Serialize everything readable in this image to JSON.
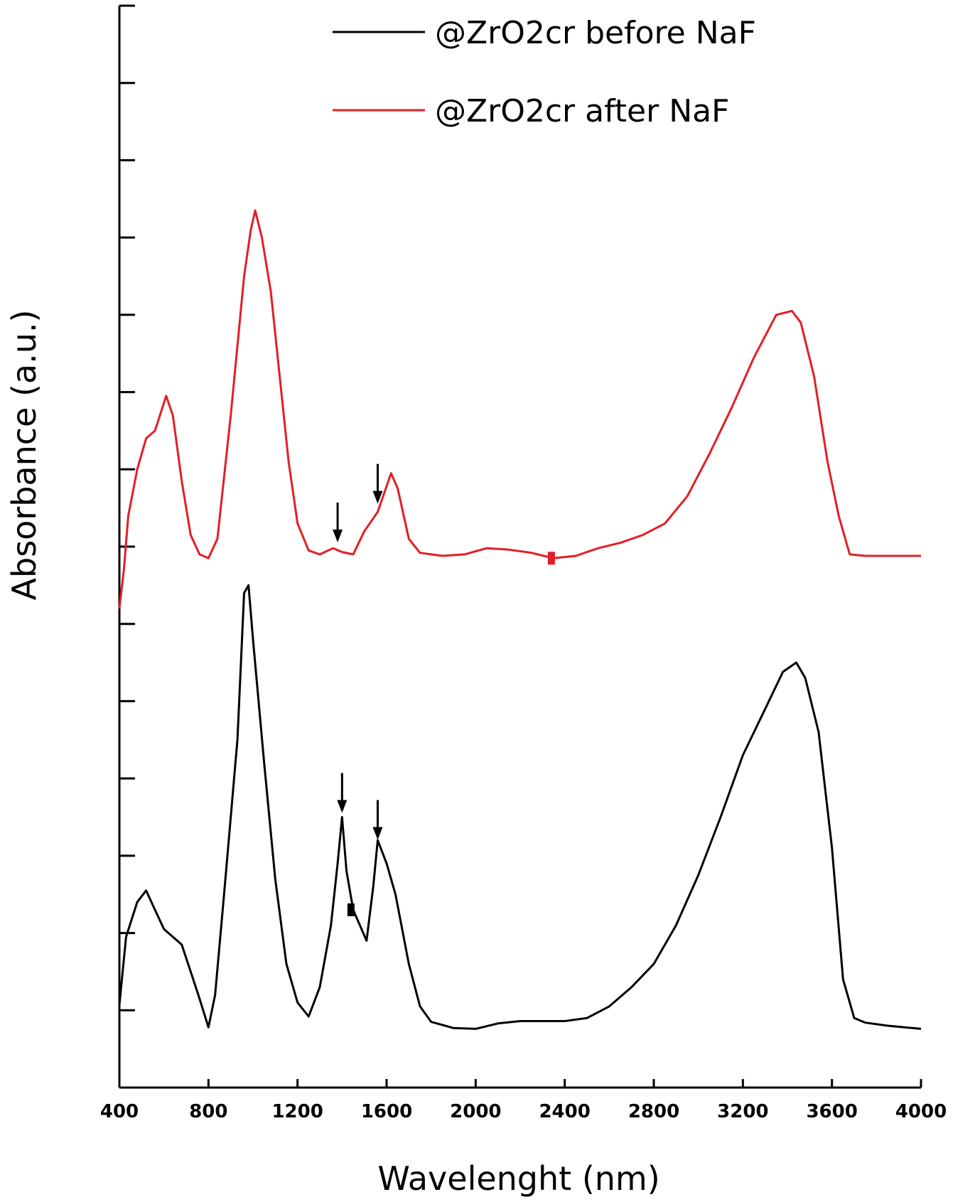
{
  "chart_data": {
    "type": "line",
    "title": "",
    "xlabel": "Wavelenght (nm)",
    "ylabel": "Absorbance (a.u.)",
    "xlim": [
      400,
      4000
    ],
    "ylim": [
      0,
      14
    ],
    "x_ticks": [
      400,
      800,
      1200,
      1600,
      2000,
      2400,
      2800,
      3200,
      3600,
      4000
    ],
    "x_tick_labels": [
      "400",
      "800",
      "1200",
      "1600",
      "2000",
      "2400",
      "2800",
      "3200",
      "3600",
      "4000"
    ],
    "y_tick_labels_shown": false,
    "grid": false,
    "legend_position": "top-right",
    "series": [
      {
        "name": "@ZrO2cr before NaF",
        "color": "#000000",
        "points": [
          [
            400,
            1.07
          ],
          [
            430,
            1.95
          ],
          [
            480,
            2.4
          ],
          [
            520,
            2.55
          ],
          [
            560,
            2.3
          ],
          [
            600,
            2.05
          ],
          [
            680,
            1.85
          ],
          [
            720,
            1.5
          ],
          [
            760,
            1.15
          ],
          [
            800,
            0.78
          ],
          [
            830,
            1.2
          ],
          [
            870,
            2.5
          ],
          [
            930,
            4.5
          ],
          [
            960,
            6.4
          ],
          [
            980,
            6.5
          ],
          [
            1000,
            5.8
          ],
          [
            1050,
            4.2
          ],
          [
            1100,
            2.7
          ],
          [
            1150,
            1.6
          ],
          [
            1200,
            1.1
          ],
          [
            1250,
            0.92
          ],
          [
            1300,
            1.3
          ],
          [
            1350,
            2.1
          ],
          [
            1380,
            2.9
          ],
          [
            1400,
            3.5
          ],
          [
            1420,
            2.8
          ],
          [
            1450,
            2.3
          ],
          [
            1480,
            2.1
          ],
          [
            1510,
            1.9
          ],
          [
            1540,
            2.6
          ],
          [
            1560,
            3.2
          ],
          [
            1600,
            2.9
          ],
          [
            1640,
            2.5
          ],
          [
            1700,
            1.6
          ],
          [
            1750,
            1.05
          ],
          [
            1800,
            0.85
          ],
          [
            1900,
            0.77
          ],
          [
            2000,
            0.76
          ],
          [
            2100,
            0.83
          ],
          [
            2200,
            0.86
          ],
          [
            2300,
            0.86
          ],
          [
            2400,
            0.86
          ],
          [
            2500,
            0.9
          ],
          [
            2600,
            1.05
          ],
          [
            2700,
            1.3
          ],
          [
            2800,
            1.6
          ],
          [
            2900,
            2.1
          ],
          [
            3000,
            2.75
          ],
          [
            3100,
            3.5
          ],
          [
            3200,
            4.3
          ],
          [
            3300,
            4.9
          ],
          [
            3380,
            5.38
          ],
          [
            3440,
            5.5
          ],
          [
            3480,
            5.3
          ],
          [
            3540,
            4.6
          ],
          [
            3600,
            3.1
          ],
          [
            3650,
            1.4
          ],
          [
            3700,
            0.9
          ],
          [
            3750,
            0.84
          ],
          [
            3850,
            0.8
          ],
          [
            4000,
            0.76
          ]
        ]
      },
      {
        "name": "@ZrO2cr after NaF",
        "color": "#e31e24",
        "points": [
          [
            400,
            6.2
          ],
          [
            420,
            6.7
          ],
          [
            440,
            7.4
          ],
          [
            480,
            8.0
          ],
          [
            520,
            8.4
          ],
          [
            560,
            8.5
          ],
          [
            610,
            8.95
          ],
          [
            640,
            8.7
          ],
          [
            680,
            7.85
          ],
          [
            720,
            7.15
          ],
          [
            760,
            6.9
          ],
          [
            800,
            6.85
          ],
          [
            840,
            7.1
          ],
          [
            900,
            8.7
          ],
          [
            960,
            10.5
          ],
          [
            990,
            11.1
          ],
          [
            1010,
            11.35
          ],
          [
            1040,
            11.0
          ],
          [
            1080,
            10.3
          ],
          [
            1120,
            9.2
          ],
          [
            1160,
            8.1
          ],
          [
            1200,
            7.3
          ],
          [
            1250,
            6.95
          ],
          [
            1300,
            6.9
          ],
          [
            1360,
            6.98
          ],
          [
            1400,
            6.93
          ],
          [
            1450,
            6.9
          ],
          [
            1500,
            7.2
          ],
          [
            1560,
            7.45
          ],
          [
            1620,
            7.95
          ],
          [
            1650,
            7.75
          ],
          [
            1700,
            7.1
          ],
          [
            1750,
            6.92
          ],
          [
            1850,
            6.88
          ],
          [
            1950,
            6.9
          ],
          [
            2050,
            6.98
          ],
          [
            2150,
            6.96
          ],
          [
            2250,
            6.92
          ],
          [
            2350,
            6.85
          ],
          [
            2450,
            6.88
          ],
          [
            2550,
            6.98
          ],
          [
            2650,
            7.05
          ],
          [
            2750,
            7.15
          ],
          [
            2850,
            7.3
          ],
          [
            2950,
            7.65
          ],
          [
            3050,
            8.2
          ],
          [
            3150,
            8.8
          ],
          [
            3250,
            9.45
          ],
          [
            3350,
            10.0
          ],
          [
            3420,
            10.05
          ],
          [
            3460,
            9.9
          ],
          [
            3520,
            9.2
          ],
          [
            3580,
            8.1
          ],
          [
            3630,
            7.4
          ],
          [
            3680,
            6.9
          ],
          [
            3750,
            6.88
          ],
          [
            3900,
            6.88
          ],
          [
            4000,
            6.88
          ]
        ]
      }
    ],
    "annotations": [
      {
        "type": "arrow",
        "series": "@ZrO2cr after NaF",
        "x": 1380,
        "y": 7.0
      },
      {
        "type": "arrow",
        "series": "@ZrO2cr after NaF",
        "x": 1560,
        "y": 7.5
      },
      {
        "type": "marker",
        "series": "@ZrO2cr after NaF",
        "x": 2340,
        "y": 6.85
      },
      {
        "type": "arrow",
        "series": "@ZrO2cr before NaF",
        "x": 1400,
        "y": 3.5
      },
      {
        "type": "arrow",
        "series": "@ZrO2cr before NaF",
        "x": 1560,
        "y": 3.15
      },
      {
        "type": "marker",
        "series": "@ZrO2cr before NaF",
        "x": 1440,
        "y": 2.3
      }
    ]
  }
}
